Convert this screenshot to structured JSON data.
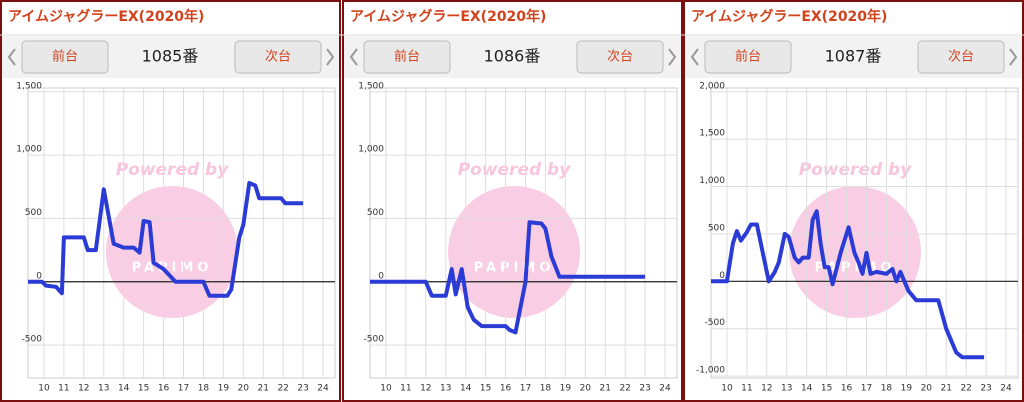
{
  "panels": [
    {
      "title": "アイムジャグラーEX(2020年)",
      "prev": "前台",
      "number": "1085番",
      "next": "次台"
    },
    {
      "title": "アイムジャグラーEX(2020年)",
      "prev": "前台",
      "number": "1086番",
      "next": "次台"
    },
    {
      "title": "アイムジャグラーEX(2020年)",
      "prev": "前台",
      "number": "1087番",
      "next": "次台"
    }
  ],
  "watermark": "Powered by",
  "watermark_logo": "PAPIMO",
  "chart_data": [
    {
      "type": "line",
      "color": "#2a3bd6",
      "grid": true,
      "xlim": [
        9.2,
        24.6
      ],
      "ylim": [
        -760,
        1530
      ],
      "xticks": [
        10,
        11,
        12,
        13,
        14,
        15,
        16,
        17,
        18,
        19,
        20,
        21,
        22,
        23,
        24
      ],
      "yticks": [
        -500,
        0,
        500,
        {
          "value": 1000,
          "label": "1,000"
        },
        {
          "value": 1500,
          "label": "1,500"
        }
      ],
      "x": [
        9.2,
        9.9,
        10.1,
        10.6,
        10.9,
        11,
        12,
        12.2,
        12.6,
        13,
        13.5,
        14,
        14.5,
        14.8,
        15,
        15.3,
        15.5,
        16,
        16.6,
        18,
        18.3,
        19.2,
        19.4,
        19.8,
        20,
        20.3,
        20.6,
        20.8,
        21.9,
        22.1,
        23
      ],
      "values": [
        0,
        0,
        -30,
        -40,
        -90,
        350,
        350,
        250,
        250,
        730,
        300,
        270,
        270,
        230,
        480,
        470,
        150,
        100,
        0,
        0,
        -110,
        -110,
        -60,
        350,
        450,
        780,
        760,
        660,
        660,
        620,
        620
      ]
    },
    {
      "type": "line",
      "color": "#2a3bd6",
      "grid": true,
      "xlim": [
        9.2,
        24.6
      ],
      "ylim": [
        -760,
        1530
      ],
      "xticks": [
        10,
        11,
        12,
        13,
        14,
        15,
        16,
        17,
        18,
        19,
        20,
        21,
        22,
        23,
        24
      ],
      "yticks": [
        -500,
        0,
        500,
        {
          "value": 1000,
          "label": "1,000"
        },
        {
          "value": 1500,
          "label": "1,500"
        }
      ],
      "x": [
        9.2,
        12,
        12.3,
        13,
        13.3,
        13.5,
        13.8,
        14.1,
        14.4,
        14.8,
        16,
        16.2,
        16.5,
        17,
        17.2,
        17.8,
        18,
        18.3,
        18.7,
        23
      ],
      "values": [
        0,
        0,
        -110,
        -110,
        100,
        -100,
        100,
        -200,
        -300,
        -350,
        -350,
        -380,
        -400,
        0,
        470,
        460,
        420,
        200,
        40,
        40
      ]
    },
    {
      "type": "line",
      "color": "#2a3bd6",
      "grid": true,
      "xlim": [
        9.2,
        24.6
      ],
      "ylim": [
        -1020,
        2040
      ],
      "xticks": [
        10,
        11,
        12,
        13,
        14,
        15,
        16,
        17,
        18,
        19,
        20,
        21,
        22,
        23,
        24
      ],
      "yticks": [
        {
          "value": -1000,
          "label": "-1,000"
        },
        -500,
        0,
        500,
        {
          "value": 1000,
          "label": "1,000"
        },
        {
          "value": 1500,
          "label": "1,500"
        },
        {
          "value": 2000,
          "label": "2,000"
        }
      ],
      "x": [
        9.2,
        10,
        10.3,
        10.5,
        10.7,
        11,
        11.2,
        11.5,
        11.8,
        12.1,
        12.4,
        12.6,
        12.9,
        13.1,
        13.4,
        13.6,
        13.8,
        14.1,
        14.3,
        14.5,
        14.7,
        14.9,
        15.1,
        15.3,
        15.7,
        16.1,
        16.4,
        16.6,
        16.8,
        17,
        17.2,
        17.5,
        18,
        18.3,
        18.5,
        18.7,
        19.1,
        19.5,
        20.6,
        21,
        21.5,
        21.8,
        22.9
      ],
      "values": [
        0,
        0,
        400,
        530,
        430,
        520,
        600,
        600,
        300,
        0,
        100,
        200,
        500,
        470,
        250,
        200,
        250,
        250,
        650,
        740,
        400,
        150,
        150,
        -30,
        300,
        570,
        300,
        200,
        80,
        300,
        80,
        100,
        80,
        130,
        0,
        100,
        -100,
        -200,
        -200,
        -500,
        -750,
        -800,
        -800
      ]
    }
  ]
}
